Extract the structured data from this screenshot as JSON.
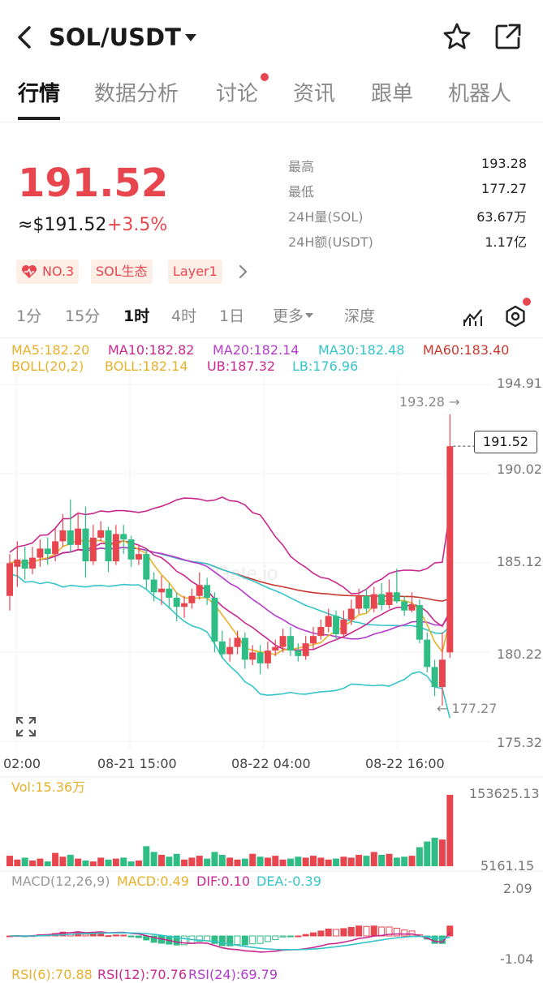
{
  "header": {
    "back_icon": "chevron-left-icon",
    "pair": "SOL/USDT",
    "dropdown_icon": "caret-down-icon",
    "favorite_icon": "star-icon",
    "share_icon": "share-icon"
  },
  "tabs": [
    "行情",
    "数据分析",
    "讨论",
    "资讯",
    "跟单",
    "机器人"
  ],
  "ticker": {
    "price": "191.52",
    "approx": "≈$191.52",
    "change": "+3.5%",
    "high_label": "最高",
    "high": "193.28",
    "low_label": "最低",
    "low": "177.27",
    "vol_label": "24H量(SOL)",
    "vol": "63.67万",
    "amt_label": "24H额(USDT)",
    "amt": "1.17亿"
  },
  "tags": [
    "NO.3",
    "SOL生态",
    "Layer1"
  ],
  "intervals": [
    "1分",
    "15分",
    "1时",
    "4时",
    "1日",
    "更多",
    "深度"
  ],
  "active_interval": "1时",
  "indicators": {
    "ma5": "MA5:182.20",
    "ma10": "MA10:182.82",
    "ma20": "MA20:182.14",
    "ma30": "MA30:182.48",
    "ma60": "MA60:183.40",
    "boll": "BOLL(20,2)",
    "boll_val": "BOLL:182.14",
    "ub": "UB:187.32",
    "lb": "LB:176.96"
  },
  "colors": {
    "up": "#e8464f",
    "down": "#2fbd85",
    "ma5": "#e8b02a",
    "ma10": "#c9288f",
    "ma20": "#b23bc9",
    "ma30": "#35c4c9",
    "ma60": "#c9372f"
  },
  "price_axis": [
    "194.91",
    "190.02",
    "185.12",
    "180.22",
    "175.32"
  ],
  "time_axis": [
    "02:00",
    "08-21 15:00",
    "08-22 04:00",
    "08-22 16:00"
  ],
  "marks": {
    "high": "193.28",
    "low": "177.27",
    "current": "191.52"
  },
  "volume": {
    "label": "Vol:15.36万",
    "max": "153625.13",
    "min": "5161.15"
  },
  "macd": {
    "label": "MACD(12,26,9)",
    "macd": "MACD:0.49",
    "dif": "DIF:0.10",
    "dea": "DEA:-0.39",
    "max": "2.09",
    "min": "-1.04"
  },
  "rsi": {
    "rsi6": "RSI(6):70.88",
    "rsi12": "RSI(12):70.76",
    "rsi24": "RSI(24):69.79"
  },
  "watermark": "Gate.io",
  "chart_data": {
    "type": "candlestick",
    "ylim": [
      175.32,
      194.91
    ],
    "candles": [
      [
        183.3,
        185.1,
        182.5,
        185.6
      ],
      [
        184.9,
        185.3,
        183.8,
        186.3
      ],
      [
        185.3,
        184.8,
        184.2,
        186.0
      ],
      [
        184.8,
        185.4,
        184.5,
        186.0
      ],
      [
        185.4,
        185.9,
        184.9,
        186.4
      ],
      [
        185.9,
        185.6,
        185.0,
        186.5
      ],
      [
        185.6,
        186.3,
        185.2,
        187.0
      ],
      [
        186.3,
        186.9,
        186.0,
        187.8
      ],
      [
        186.9,
        186.1,
        185.7,
        188.6
      ],
      [
        186.1,
        187.0,
        185.8,
        187.9
      ],
      [
        187.0,
        185.2,
        184.3,
        188.2
      ],
      [
        185.2,
        186.5,
        185.0,
        187.2
      ],
      [
        186.5,
        186.9,
        186.3,
        187.4
      ],
      [
        186.9,
        185.2,
        184.6,
        187.1
      ],
      [
        185.2,
        186.7,
        185.0,
        187.2
      ],
      [
        186.7,
        186.4,
        185.6,
        187.2
      ],
      [
        186.4,
        185.3,
        184.9,
        186.6
      ],
      [
        185.3,
        185.6,
        185.0,
        186.1
      ],
      [
        185.6,
        184.2,
        183.7,
        185.9
      ],
      [
        184.2,
        183.5,
        183.0,
        184.6
      ],
      [
        183.5,
        183.7,
        182.8,
        184.4
      ],
      [
        183.7,
        183.2,
        182.6,
        184.0
      ],
      [
        183.2,
        182.7,
        181.9,
        183.5
      ],
      [
        182.7,
        182.9,
        182.1,
        183.3
      ],
      [
        182.9,
        183.3,
        182.6,
        183.7
      ],
      [
        183.3,
        183.9,
        183.1,
        184.6
      ],
      [
        183.9,
        183.2,
        182.8,
        184.3
      ],
      [
        183.2,
        180.8,
        180.2,
        183.5
      ],
      [
        180.8,
        180.1,
        179.9,
        181.4
      ],
      [
        180.1,
        180.5,
        179.7,
        181.0
      ],
      [
        180.5,
        181.0,
        180.1,
        181.4
      ],
      [
        181.0,
        179.8,
        179.3,
        181.3
      ],
      [
        179.8,
        180.2,
        179.5,
        180.6
      ],
      [
        180.2,
        179.6,
        179.0,
        180.6
      ],
      [
        179.6,
        180.3,
        179.3,
        180.8
      ],
      [
        180.3,
        180.5,
        180.0,
        180.9
      ],
      [
        180.5,
        181.1,
        180.2,
        181.5
      ],
      [
        181.1,
        180.3,
        180.0,
        181.6
      ],
      [
        180.3,
        180.0,
        179.7,
        180.7
      ],
      [
        180.0,
        180.7,
        179.8,
        181.1
      ],
      [
        180.7,
        181.1,
        180.4,
        181.6
      ],
      [
        181.1,
        181.6,
        180.9,
        182.0
      ],
      [
        181.6,
        182.2,
        181.3,
        182.6
      ],
      [
        182.2,
        181.2,
        180.9,
        182.5
      ],
      [
        181.2,
        182.0,
        181.0,
        182.5
      ],
      [
        182.0,
        182.6,
        181.7,
        183.1
      ],
      [
        182.6,
        183.3,
        182.3,
        183.7
      ],
      [
        183.3,
        182.6,
        182.4,
        183.7
      ],
      [
        182.6,
        183.4,
        182.4,
        183.8
      ],
      [
        183.4,
        182.8,
        182.5,
        184.0
      ],
      [
        182.8,
        183.5,
        182.6,
        184.2
      ],
      [
        183.5,
        183.0,
        182.9,
        184.8
      ],
      [
        183.0,
        182.5,
        182.2,
        183.3
      ],
      [
        182.5,
        182.8,
        182.4,
        183.5
      ],
      [
        182.8,
        180.9,
        180.7,
        183.1
      ],
      [
        180.9,
        179.4,
        179.1,
        181.3
      ],
      [
        179.4,
        178.3,
        177.8,
        179.8
      ],
      [
        178.3,
        179.8,
        177.27,
        181.3
      ],
      [
        180.2,
        191.52,
        179.9,
        193.28
      ]
    ],
    "volumes": [
      22,
      14,
      18,
      12,
      16,
      10,
      28,
      20,
      24,
      16,
      12,
      10,
      18,
      14,
      16,
      18,
      10,
      12,
      42,
      30,
      24,
      20,
      26,
      14,
      18,
      22,
      16,
      30,
      24,
      18,
      14,
      16,
      26,
      20,
      18,
      22,
      14,
      16,
      20,
      18,
      22,
      18,
      14,
      16,
      20,
      18,
      24,
      22,
      30,
      24,
      26,
      18,
      20,
      22,
      40,
      52,
      60,
      56,
      150
    ]
  }
}
